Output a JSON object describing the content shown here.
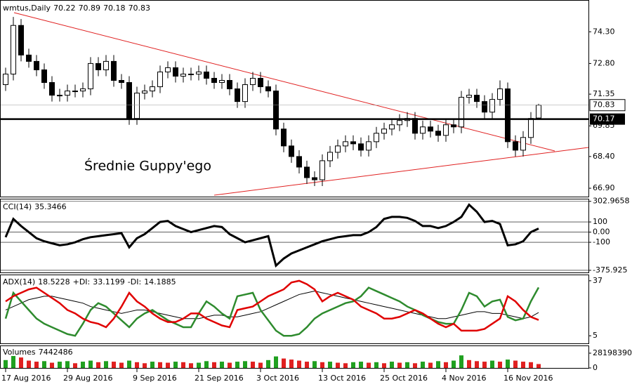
{
  "chart_data": [
    {
      "type": "candlestick",
      "title": "wmtus,Daily",
      "annotation": "Średnie Guppy'ego",
      "categories": [
        "17 Aug 2016",
        null,
        null,
        null,
        null,
        null,
        null,
        null,
        "29 Aug 2016",
        null,
        null,
        null,
        null,
        null,
        null,
        null,
        null,
        "9 Sep 2016",
        null,
        null,
        null,
        null,
        null,
        null,
        null,
        "21 Sep 2016",
        null,
        null,
        null,
        null,
        null,
        null,
        null,
        "3 Oct 2016",
        null,
        null,
        null,
        null,
        null,
        null,
        null,
        "13 Oct 2016",
        null,
        null,
        null,
        null,
        null,
        null,
        null,
        "25 Oct 2016",
        null,
        null,
        null,
        null,
        null,
        null,
        null,
        "4 Nov 2016",
        null,
        null,
        null,
        null,
        null,
        null,
        null,
        "16 Nov 2016",
        null,
        null,
        null,
        null
      ],
      "open": [
        71.8,
        72.3,
        74.6,
        73.2,
        72.9,
        72.5,
        71.9,
        71.3,
        71.3,
        71.5,
        71.5,
        71.6,
        72.8,
        72.5,
        72.9,
        72.0,
        71.9,
        70.2,
        71.4,
        71.5,
        71.7,
        72.4,
        72.6,
        72.2,
        72.3,
        72.3,
        72.4,
        72.1,
        71.9,
        72.0,
        71.6,
        71.0,
        71.8,
        72.1,
        71.7,
        71.5,
        69.7,
        68.9,
        68.4,
        67.9,
        67.4,
        67.3,
        68.2,
        68.6,
        68.9,
        69.1,
        69.0,
        68.7,
        69.1,
        69.5,
        69.7,
        69.9,
        70.1,
        70.2,
        69.5,
        69.8,
        69.6,
        69.4,
        69.9,
        69.8,
        71.2,
        71.3,
        71.0,
        70.5,
        71.1,
        71.6,
        69.1,
        68.7,
        69.3,
        70.22
      ],
      "high": [
        72.6,
        75.0,
        74.9,
        73.5,
        73.2,
        72.8,
        72.2,
        71.6,
        71.8,
        71.8,
        71.9,
        73.1,
        73.1,
        73.2,
        73.2,
        72.3,
        72.2,
        71.7,
        71.8,
        72.0,
        72.7,
        72.9,
        72.9,
        72.6,
        72.6,
        72.7,
        72.7,
        72.4,
        72.3,
        72.3,
        71.9,
        72.1,
        72.4,
        72.4,
        72.0,
        71.8,
        70.0,
        69.2,
        68.7,
        68.2,
        67.7,
        68.5,
        68.9,
        69.2,
        69.4,
        69.4,
        69.3,
        69.4,
        69.8,
        70.0,
        70.2,
        70.4,
        70.5,
        70.5,
        70.1,
        70.1,
        69.9,
        70.2,
        70.2,
        71.5,
        71.6,
        71.6,
        71.3,
        71.4,
        72.0,
        71.9,
        69.4,
        69.6,
        70.5,
        70.89
      ],
      "low": [
        71.5,
        72.0,
        72.9,
        72.6,
        72.2,
        71.6,
        71.0,
        71.0,
        71.0,
        71.2,
        71.2,
        71.3,
        72.2,
        72.2,
        71.7,
        71.6,
        69.9,
        69.9,
        71.1,
        71.2,
        71.4,
        72.1,
        71.9,
        71.9,
        72.0,
        72.0,
        71.8,
        71.6,
        71.6,
        71.3,
        70.7,
        70.7,
        71.5,
        71.4,
        71.2,
        69.4,
        68.6,
        68.1,
        67.6,
        67.1,
        67.0,
        67.0,
        67.9,
        68.3,
        68.6,
        68.7,
        68.4,
        68.4,
        68.8,
        69.2,
        69.4,
        69.6,
        69.8,
        69.2,
        69.2,
        69.3,
        69.1,
        69.1,
        69.5,
        69.5,
        70.9,
        70.7,
        70.2,
        70.2,
        70.8,
        68.8,
        68.4,
        68.4,
        69.0,
        70.18
      ],
      "close": [
        72.3,
        74.6,
        73.2,
        72.9,
        72.5,
        71.9,
        71.3,
        71.3,
        71.5,
        71.5,
        71.6,
        72.8,
        72.5,
        72.9,
        72.0,
        71.9,
        70.2,
        71.4,
        71.5,
        71.7,
        72.4,
        72.6,
        72.2,
        72.3,
        72.3,
        72.4,
        72.1,
        71.9,
        72.0,
        71.6,
        71.0,
        71.8,
        72.1,
        71.7,
        71.5,
        69.7,
        68.9,
        68.4,
        67.9,
        67.4,
        67.3,
        68.2,
        68.6,
        68.9,
        69.1,
        69.0,
        68.7,
        69.1,
        69.5,
        69.7,
        69.9,
        70.1,
        70.2,
        69.5,
        69.8,
        69.6,
        69.4,
        69.9,
        69.8,
        71.2,
        71.3,
        71.0,
        70.5,
        71.1,
        71.6,
        69.1,
        68.7,
        69.3,
        70.2,
        70.83
      ],
      "hline": 70.17,
      "ylim": [
        66.57,
        75.67
      ],
      "yticks": [
        {
          "value": 74.3,
          "label": "74.30"
        },
        {
          "value": 72.8,
          "label": "72.80"
        },
        71.35,
        69.85,
        {
          "value": 68.4,
          "label": "68.40"
        },
        {
          "value": 66.9,
          "label": "66.90"
        }
      ]
    },
    {
      "type": "line",
      "title": "CCI(14)",
      "color": "#000000",
      "values": [
        -50,
        130,
        60,
        0,
        -60,
        -90,
        -110,
        -130,
        -120,
        -100,
        -70,
        -50,
        -40,
        -30,
        -20,
        -10,
        -150,
        -60,
        -20,
        40,
        100,
        110,
        60,
        30,
        0,
        20,
        40,
        60,
        50,
        -20,
        -60,
        -100,
        -80,
        -60,
        -40,
        -330,
        -260,
        -210,
        -180,
        -150,
        -120,
        -90,
        -70,
        -50,
        -40,
        -30,
        -30,
        0,
        50,
        130,
        150,
        150,
        140,
        110,
        60,
        60,
        40,
        60,
        100,
        150,
        270,
        200,
        100,
        110,
        80,
        -130,
        -120,
        -90,
        0,
        35.3466
      ],
      "ylim": [
        -390,
        315
      ],
      "yticks": [
        302.9658,
        100,
        {
          "value": 0,
          "label": "0.00"
        },
        -100,
        -375.925
      ]
    },
    {
      "type": "multiline",
      "series": [
        {
          "name": "ADX(14)",
          "color": "#000000",
          "values": [
            20,
            22,
            24,
            26,
            27,
            28,
            28,
            27,
            26,
            25,
            24,
            22,
            21,
            20,
            19,
            18,
            19,
            20,
            20,
            19,
            18,
            17,
            16,
            15,
            15,
            15,
            16,
            17,
            17,
            16,
            16,
            17,
            18,
            19,
            21,
            23,
            25,
            27,
            29,
            30,
            31,
            30,
            29,
            28,
            27,
            26,
            25,
            24,
            23,
            22,
            21,
            20,
            19,
            18,
            17,
            16,
            15,
            15,
            16,
            17,
            18,
            19,
            19,
            18,
            18,
            17,
            16,
            15,
            16,
            18.5228
          ]
        },
        {
          "name": "+DI:",
          "color": "#2e8b2e",
          "values": [
            15,
            30,
            25,
            20,
            15,
            12,
            10,
            8,
            6,
            5,
            12,
            20,
            24,
            22,
            18,
            14,
            10,
            15,
            18,
            20,
            17,
            14,
            12,
            10,
            10,
            18,
            25,
            22,
            18,
            15,
            28,
            29,
            30,
            20,
            14,
            8,
            5,
            5,
            6,
            10,
            15,
            18,
            20,
            22,
            24,
            25,
            28,
            33,
            31,
            29,
            27,
            25,
            22,
            20,
            17,
            15,
            13,
            12,
            12,
            20,
            30,
            28,
            22,
            25,
            26,
            16,
            14,
            15,
            25,
            33.1199
          ]
        },
        {
          "name": "-DI:",
          "color": "#e00000",
          "values": [
            25,
            28,
            30,
            32,
            33,
            30,
            27,
            24,
            20,
            18,
            15,
            13,
            12,
            10,
            15,
            22,
            30,
            25,
            22,
            18,
            15,
            13,
            13,
            15,
            18,
            18,
            15,
            13,
            11,
            10,
            20,
            21,
            22,
            25,
            28,
            30,
            32,
            36,
            37,
            35,
            32,
            25,
            28,
            30,
            28,
            26,
            22,
            20,
            18,
            15,
            15,
            16,
            18,
            20,
            18,
            15,
            12,
            10,
            12,
            8,
            8,
            8,
            9,
            12,
            15,
            28,
            25,
            20,
            16,
            14.1885
          ]
        }
      ],
      "ylim": [
        1,
        39.8
      ],
      "yticks": [
        37,
        5
      ]
    },
    {
      "type": "bar",
      "title": "Volumes",
      "values": [
        15000000,
        30000000,
        20000000,
        14000000,
        12000000,
        13000000,
        10000000,
        12000000,
        13000000,
        9000000,
        12000000,
        14000000,
        11000000,
        13000000,
        12000000,
        10000000,
        14000000,
        11000000,
        9000000,
        12000000,
        11000000,
        10000000,
        12000000,
        11000000,
        9000000,
        10000000,
        13000000,
        11000000,
        12000000,
        10000000,
        12000000,
        13000000,
        12000000,
        10000000,
        15000000,
        22000000,
        18000000,
        16000000,
        14000000,
        12000000,
        13000000,
        11000000,
        12000000,
        10000000,
        9000000,
        11000000,
        12000000,
        10000000,
        11000000,
        9000000,
        12000000,
        10000000,
        11000000,
        9000000,
        12000000,
        10000000,
        13000000,
        11000000,
        14000000,
        24000000,
        15000000,
        13000000,
        12000000,
        14000000,
        12000000,
        16000000,
        14000000,
        12000000,
        11000000,
        7442486
      ],
      "ylim": [
        0,
        38900000
      ],
      "yticks": [
        28198390,
        0
      ]
    }
  ]
}
